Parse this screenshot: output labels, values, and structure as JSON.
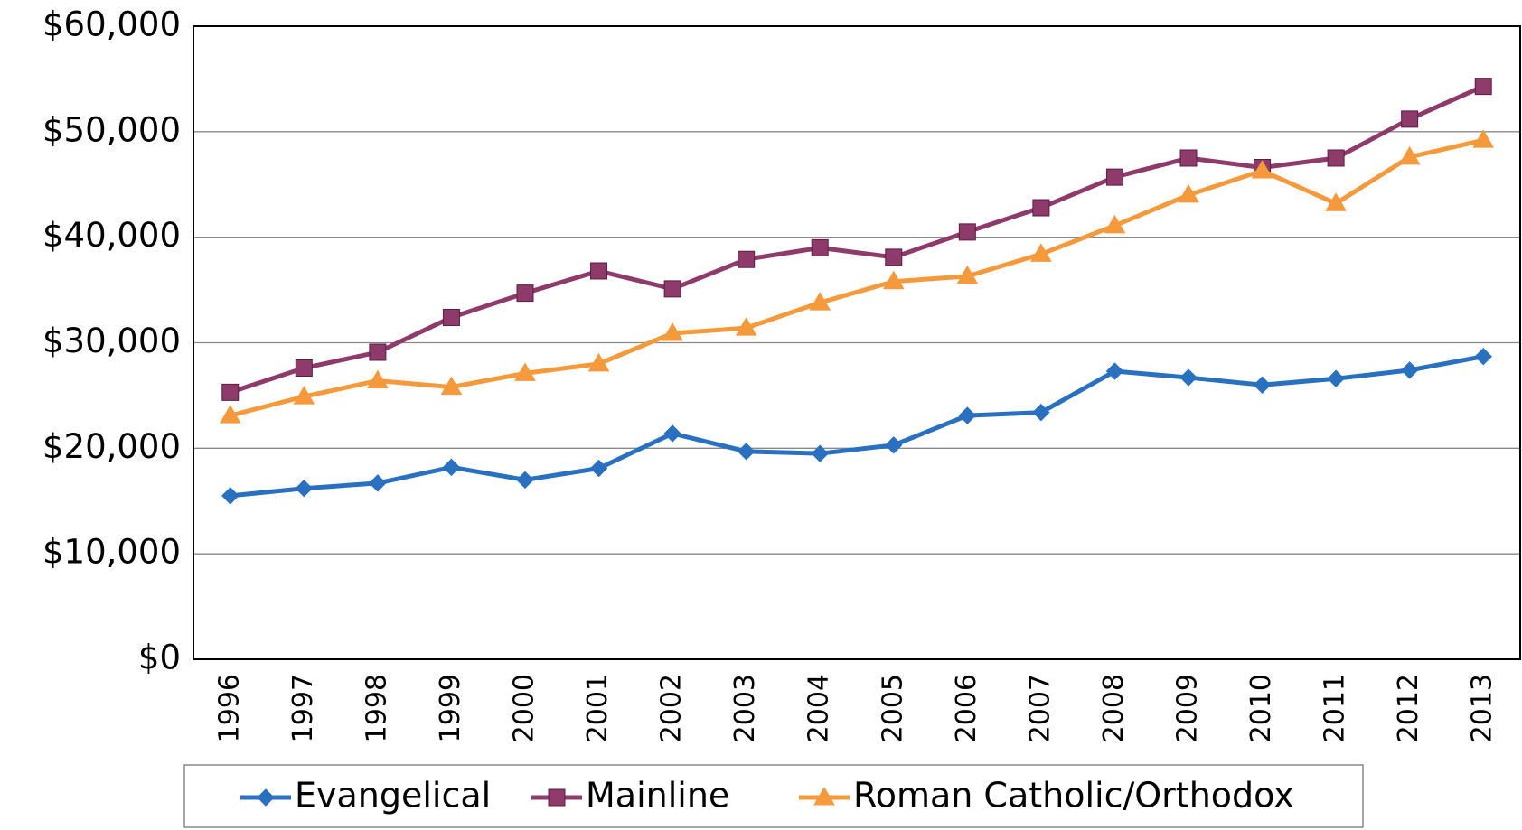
{
  "chart_data": {
    "type": "line",
    "categories": [
      "1996",
      "1997",
      "1998",
      "1999",
      "2000",
      "2001",
      "2002",
      "2003",
      "2004",
      "2005",
      "2006",
      "2007",
      "2008",
      "2009",
      "2010",
      "2011",
      "2012",
      "2013"
    ],
    "series": [
      {
        "name": "Evangelical",
        "color": "#2a70c0",
        "marker": "diamond",
        "values": [
          15500,
          16200,
          16700,
          18200,
          17000,
          18100,
          21400,
          19700,
          19500,
          20300,
          23100,
          23400,
          27300,
          26700,
          26000,
          26600,
          27400,
          28700
        ]
      },
      {
        "name": "Mainline",
        "color": "#8e3a6a",
        "marker": "square",
        "values": [
          25300,
          27600,
          29100,
          32400,
          34700,
          36800,
          35100,
          37900,
          39000,
          38100,
          40500,
          42800,
          45700,
          47500,
          46600,
          47500,
          51200,
          54300
        ]
      },
      {
        "name": "Roman Catholic/Orthodox",
        "color": "#f59a3c",
        "marker": "triangle",
        "values": [
          23100,
          24900,
          26400,
          25800,
          27100,
          28000,
          30900,
          31400,
          33800,
          35800,
          36300,
          38400,
          41100,
          44000,
          46300,
          43200,
          47600,
          49200
        ]
      }
    ],
    "ylim": [
      0,
      60000
    ],
    "yticks": [
      {
        "value": 0,
        "label": "$0"
      },
      {
        "value": 10000,
        "label": "$10,000"
      },
      {
        "value": 20000,
        "label": "$20,000"
      },
      {
        "value": 30000,
        "label": "$30,000"
      },
      {
        "value": 40000,
        "label": "$40,000"
      },
      {
        "value": 50000,
        "label": "$50,000"
      },
      {
        "value": 60000,
        "label": "$60,000"
      }
    ],
    "grid": true,
    "legend": "bottom"
  }
}
